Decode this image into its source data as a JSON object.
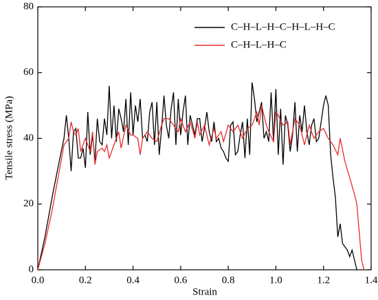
{
  "chart_data": {
    "type": "line",
    "x_label": "Strain",
    "y_label": "Tensile stress (MPa)",
    "xlim": [
      0,
      1.4
    ],
    "ylim": [
      0,
      80
    ],
    "xticks": [
      {
        "value": 0,
        "label": "0.0"
      },
      0.2,
      0.4,
      0.6,
      0.8,
      {
        "value": 1,
        "label": "1.0"
      },
      1.2,
      1.4
    ],
    "yticks": [
      0,
      20,
      40,
      60,
      80
    ],
    "legend": "upper right",
    "series": [
      {
        "name": "C–H–L–H–C–H–L–H–C",
        "color": "#000000",
        "x": [
          0,
          0.03,
          0.06,
          0.09,
          0.11,
          0.12,
          0.13,
          0.14,
          0.15,
          0.16,
          0.17,
          0.18,
          0.19,
          0.2,
          0.21,
          0.22,
          0.23,
          0.24,
          0.25,
          0.26,
          0.27,
          0.28,
          0.29,
          0.3,
          0.31,
          0.32,
          0.33,
          0.34,
          0.35,
          0.36,
          0.37,
          0.38,
          0.39,
          0.4,
          0.41,
          0.42,
          0.43,
          0.44,
          0.45,
          0.46,
          0.47,
          0.48,
          0.49,
          0.5,
          0.51,
          0.52,
          0.53,
          0.54,
          0.55,
          0.56,
          0.57,
          0.58,
          0.59,
          0.6,
          0.61,
          0.62,
          0.63,
          0.64,
          0.65,
          0.66,
          0.67,
          0.68,
          0.69,
          0.7,
          0.71,
          0.72,
          0.73,
          0.74,
          0.75,
          0.76,
          0.77,
          0.78,
          0.79,
          0.8,
          0.81,
          0.82,
          0.83,
          0.84,
          0.85,
          0.86,
          0.87,
          0.88,
          0.89,
          0.9,
          0.91,
          0.92,
          0.93,
          0.94,
          0.95,
          0.96,
          0.97,
          0.98,
          0.99,
          1,
          1.01,
          1.02,
          1.03,
          1.04,
          1.05,
          1.06,
          1.07,
          1.08,
          1.09,
          1.1,
          1.11,
          1.12,
          1.13,
          1.14,
          1.15,
          1.16,
          1.17,
          1.18,
          1.19,
          1.2,
          1.21,
          1.22,
          1.23,
          1.24,
          1.25,
          1.26,
          1.27,
          1.28,
          1.3,
          1.31,
          1.32,
          1.33,
          1.34
        ],
        "values": [
          0,
          10,
          22,
          33,
          40,
          47,
          40,
          30,
          42,
          43,
          34,
          34,
          37,
          31,
          48,
          35,
          41,
          33,
          46,
          39,
          38,
          46,
          41,
          56,
          40,
          50,
          39,
          49,
          46,
          42,
          52,
          38,
          54,
          41,
          50,
          45,
          52,
          40,
          41,
          39,
          48,
          51,
          38,
          51,
          35,
          43,
          53,
          44,
          40,
          49,
          54,
          38,
          52,
          41,
          48,
          53,
          38,
          47,
          44,
          41,
          46,
          46,
          39,
          43,
          48,
          42,
          39,
          45,
          39,
          40,
          37,
          36,
          34,
          33,
          44,
          45,
          35,
          36,
          41,
          45,
          34,
          46,
          35,
          57,
          52,
          45,
          48,
          51,
          40,
          42,
          39,
          54,
          39,
          55,
          35,
          49,
          32,
          47,
          44,
          36,
          41,
          51,
          36,
          47,
          42,
          50,
          42,
          38,
          44,
          46,
          39,
          40,
          45,
          50,
          53,
          50,
          35,
          28,
          22,
          10,
          14,
          8,
          6,
          4,
          6,
          3,
          0
        ]
      },
      {
        "name": "C–H–L–H–C",
        "color": "#e8282b",
        "x": [
          0,
          0.03,
          0.06,
          0.09,
          0.11,
          0.13,
          0.14,
          0.15,
          0.16,
          0.17,
          0.18,
          0.2,
          0.22,
          0.23,
          0.24,
          0.25,
          0.27,
          0.28,
          0.29,
          0.3,
          0.32,
          0.34,
          0.35,
          0.37,
          0.39,
          0.4,
          0.42,
          0.43,
          0.44,
          0.46,
          0.48,
          0.5,
          0.52,
          0.53,
          0.55,
          0.57,
          0.59,
          0.6,
          0.62,
          0.64,
          0.66,
          0.67,
          0.68,
          0.7,
          0.72,
          0.74,
          0.75,
          0.77,
          0.78,
          0.8,
          0.82,
          0.84,
          0.86,
          0.88,
          0.9,
          0.92,
          0.93,
          0.94,
          0.96,
          0.97,
          0.99,
          1,
          1.01,
          1.03,
          1.05,
          1.06,
          1.08,
          1.1,
          1.12,
          1.14,
          1.16,
          1.18,
          1.2,
          1.22,
          1.24,
          1.26,
          1.27,
          1.29,
          1.31,
          1.33,
          1.34,
          1.36,
          1.37
        ],
        "values": [
          0,
          8,
          18,
          30,
          38,
          40,
          45,
          42,
          41,
          43,
          36,
          40,
          36,
          42,
          32,
          36,
          37,
          36,
          38,
          34,
          38,
          42,
          37,
          44,
          41,
          41,
          40,
          35,
          40,
          42,
          40,
          39,
          44,
          46,
          46,
          44,
          42,
          46,
          42,
          45,
          40,
          45,
          41,
          44,
          38,
          43,
          40,
          42,
          39,
          44,
          42,
          44,
          40,
          43,
          44,
          48,
          44,
          50,
          44,
          42,
          39,
          48,
          47,
          44,
          45,
          38,
          46,
          44,
          38,
          44,
          40,
          42,
          43,
          40,
          38,
          35,
          40,
          33,
          28,
          23,
          20,
          3,
          0
        ]
      }
    ]
  }
}
